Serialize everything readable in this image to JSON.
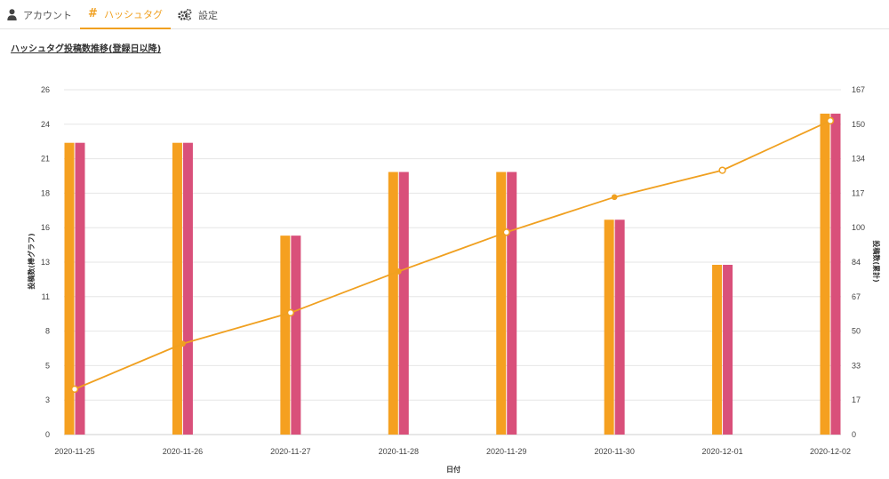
{
  "nav": {
    "tabs": [
      {
        "label": "アカウント",
        "icon": "user-icon"
      },
      {
        "label": "ハッシュタグ",
        "icon": "hashtag-icon",
        "active": true
      },
      {
        "label": "設定",
        "icon": "gears-icon"
      }
    ]
  },
  "page": {
    "title": "ハッシュタグ投稿数推移(登録日以降)"
  },
  "colors": {
    "accent": "#f0a020",
    "bar_a": "#f5a020",
    "bar_b": "#d9507a",
    "line": "#f0a020"
  },
  "chart_data": {
    "type": "bar",
    "categories": [
      "2020-11-25",
      "2020-11-26",
      "2020-11-27",
      "2020-11-28",
      "2020-11-29",
      "2020-11-30",
      "2020-12-01",
      "2020-12-02"
    ],
    "series": [
      {
        "values": [
          22,
          22,
          15,
          19.8,
          19.8,
          16.2,
          12.8,
          24.2
        ],
        "axis": "left",
        "kind": "bar",
        "color": "#f5a020"
      },
      {
        "values": [
          22,
          22,
          15,
          19.8,
          19.8,
          16.2,
          12.8,
          24.2
        ],
        "axis": "left",
        "kind": "bar",
        "color": "#d9507a"
      },
      {
        "values": [
          22,
          44,
          59,
          79,
          98,
          115,
          128,
          152
        ],
        "axis": "right",
        "kind": "line",
        "color": "#f0a020"
      }
    ],
    "xlabel": "日付",
    "ylabel_left": "投稿数(棒グラフ)",
    "ylabel_right": "投稿数(累計)",
    "ylim_left": [
      0,
      26
    ],
    "ylim_right": [
      0,
      167
    ],
    "yticks_left": [
      "26",
      "24",
      "21",
      "18",
      "16",
      "13",
      "11",
      "8",
      "5",
      "3",
      "0"
    ],
    "yticks_right": [
      "167",
      "150",
      "134",
      "117",
      "100",
      "84",
      "67",
      "50",
      "33",
      "17",
      "0"
    ],
    "grid": true
  }
}
